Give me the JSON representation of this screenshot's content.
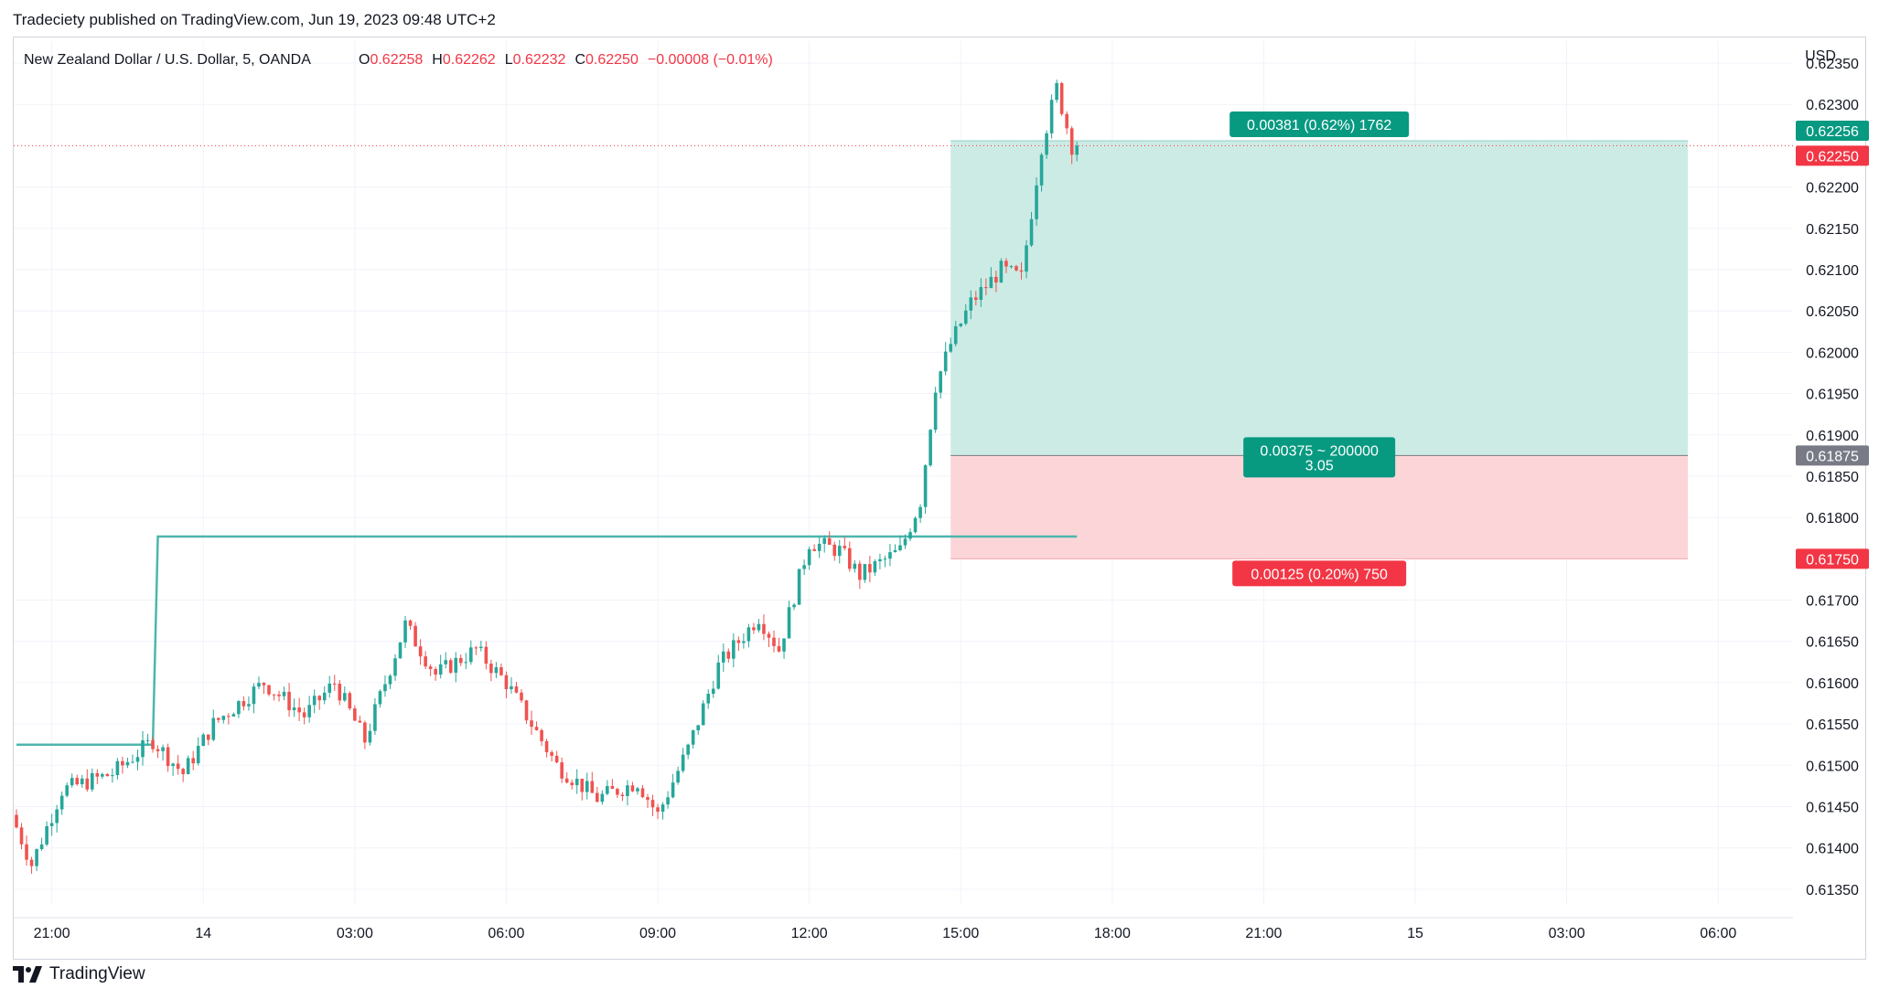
{
  "publisher_line": "Tradeciety published on TradingView.com, Jun 19, 2023 09:48 UTC+2",
  "footer": {
    "brand": "TradingView"
  },
  "header": {
    "symbol": "New Zealand Dollar / U.S. Dollar, 5, OANDA",
    "o_label": "O",
    "o_value": "0.62258",
    "h_label": "H",
    "h_value": "0.62262",
    "l_label": "L",
    "l_value": "0.62232",
    "c_label": "C",
    "c_value": "0.62250",
    "change": "−0.00008 (−0.01%)"
  },
  "colors": {
    "up": "#26a69a",
    "down": "#ef5350",
    "profit_zone": "#cdebe5",
    "loss_zone": "#fcd5d8",
    "teal_badge": "#089981",
    "red_badge": "#f23645",
    "grey_badge": "#787b86",
    "ma_line": "#4db6ac"
  },
  "chart_data": {
    "type": "candlestick",
    "symbol": "NZDUSD",
    "timeframe": "5",
    "currency_label": "USD",
    "ylim": [
      0.6132,
      0.6236
    ],
    "y_ticks": [
      "0.62350",
      "0.62300",
      "0.62200",
      "0.62150",
      "0.62100",
      "0.62050",
      "0.62000",
      "0.61950",
      "0.61900",
      "0.61850",
      "0.61800",
      "0.61700",
      "0.61650",
      "0.61600",
      "0.61550",
      "0.61500",
      "0.61450",
      "0.61400",
      "0.61350"
    ],
    "x_ticks": [
      {
        "label": "21:00",
        "bar": 7
      },
      {
        "label": "14",
        "bar": 37
      },
      {
        "label": "03:00",
        "bar": 67
      },
      {
        "label": "06:00",
        "bar": 97
      },
      {
        "label": "09:00",
        "bar": 127
      },
      {
        "label": "12:00",
        "bar": 157
      },
      {
        "label": "15:00",
        "bar": 187
      },
      {
        "label": "18:00",
        "bar": 217
      },
      {
        "label": "21:00",
        "bar": 247
      },
      {
        "label": "15",
        "bar": 277
      },
      {
        "label": "03:00",
        "bar": 307
      },
      {
        "label": "06:00",
        "bar": 337
      }
    ],
    "key_prices": [
      {
        "bar": 0,
        "price": 0.6144
      },
      {
        "bar": 4,
        "price": 0.6138
      },
      {
        "bar": 10,
        "price": 0.6147
      },
      {
        "bar": 20,
        "price": 0.6149
      },
      {
        "bar": 28,
        "price": 0.6153
      },
      {
        "bar": 34,
        "price": 0.6149
      },
      {
        "bar": 40,
        "price": 0.6155
      },
      {
        "bar": 50,
        "price": 0.616
      },
      {
        "bar": 58,
        "price": 0.6156
      },
      {
        "bar": 64,
        "price": 0.616
      },
      {
        "bar": 70,
        "price": 0.6153
      },
      {
        "bar": 78,
        "price": 0.6167
      },
      {
        "bar": 84,
        "price": 0.6161
      },
      {
        "bar": 92,
        "price": 0.6164
      },
      {
        "bar": 98,
        "price": 0.616
      },
      {
        "bar": 108,
        "price": 0.615
      },
      {
        "bar": 116,
        "price": 0.6146
      },
      {
        "bar": 124,
        "price": 0.6148
      },
      {
        "bar": 128,
        "price": 0.6144
      },
      {
        "bar": 134,
        "price": 0.6152
      },
      {
        "bar": 140,
        "price": 0.6162
      },
      {
        "bar": 148,
        "price": 0.6168
      },
      {
        "bar": 152,
        "price": 0.6164
      },
      {
        "bar": 158,
        "price": 0.6177
      },
      {
        "bar": 164,
        "price": 0.6176
      },
      {
        "bar": 168,
        "price": 0.6173
      },
      {
        "bar": 176,
        "price": 0.6176
      },
      {
        "bar": 180,
        "price": 0.6182
      },
      {
        "bar": 183,
        "price": 0.6196
      },
      {
        "bar": 186,
        "price": 0.6201
      },
      {
        "bar": 190,
        "price": 0.6206
      },
      {
        "bar": 196,
        "price": 0.621
      },
      {
        "bar": 200,
        "price": 0.6209
      },
      {
        "bar": 202,
        "price": 0.6217
      },
      {
        "bar": 204,
        "price": 0.6225
      },
      {
        "bar": 207,
        "price": 0.6232
      },
      {
        "bar": 210,
        "price": 0.6225
      }
    ],
    "moving_line": [
      {
        "bar": 0,
        "price": 0.61525
      },
      {
        "bar": 27,
        "price": 0.61525
      },
      {
        "bar": 28,
        "price": 0.61777
      },
      {
        "bar": 210,
        "price": 0.61777
      }
    ],
    "position": {
      "entry": 0.61875,
      "target": 0.62256,
      "stop": 0.6175,
      "start_bar": 185,
      "end_bar": 331,
      "profit_label": "0.00381 (0.62%) 1762",
      "center_label_1": "0.00375 ~ 200000",
      "center_label_2": "3.05",
      "loss_label": "0.00125 (0.20%) 750"
    },
    "last_price": 0.6225,
    "price_badges": [
      {
        "text": "0.62256",
        "price": 0.62256,
        "color": "#089981"
      },
      {
        "text": "0.62250",
        "price": 0.6225,
        "color": "#f23645"
      },
      {
        "text": "0.61875",
        "price": 0.61875,
        "color": "#787b86"
      },
      {
        "text": "0.61750",
        "price": 0.6175,
        "color": "#f23645"
      }
    ]
  }
}
